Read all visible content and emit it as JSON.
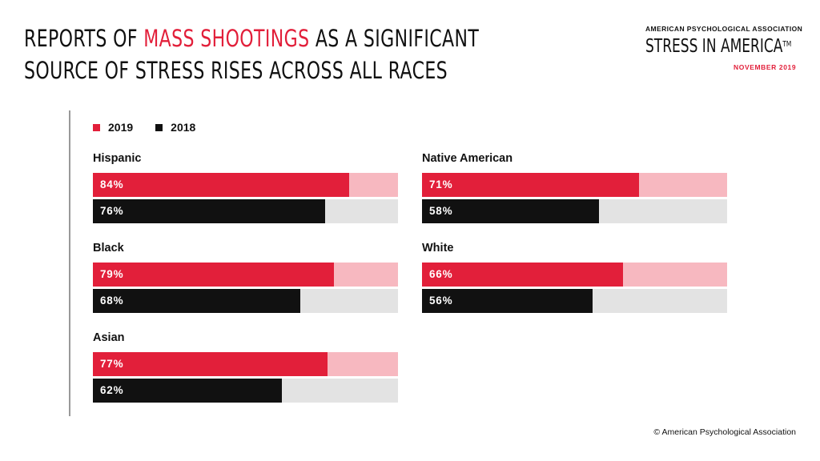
{
  "header": {
    "title_part1": "REPORTS OF ",
    "title_highlight": "MASS SHOOTINGS",
    "title_part2": " AS A SIGNIFICANT",
    "title_line2": "SOURCE OF STRESS RISES ACROSS ALL RACES"
  },
  "brand": {
    "org": "AMERICAN PSYCHOLOGICAL ASSOCIATION",
    "name": "STRESS IN AMERICA",
    "tm": "TM",
    "date": "NOVEMBER 2019"
  },
  "footer": {
    "copyright": "© American Psychological Association"
  },
  "colors": {
    "red": "#e21f3a",
    "red_track": "#f7b8c0",
    "black": "#111111",
    "gray_track": "#e3e3e3"
  },
  "chart_data": {
    "type": "bar",
    "orientation": "horizontal",
    "unit": "%",
    "xlim": [
      0,
      100
    ],
    "legend": [
      "2019",
      "2018"
    ],
    "legend_placement": "top-left",
    "groups": [
      {
        "name": "Hispanic",
        "values": [
          84,
          76
        ],
        "labels": [
          "84%",
          "76%"
        ]
      },
      {
        "name": "Black",
        "values": [
          79,
          68
        ],
        "labels": [
          "79%",
          "68%"
        ]
      },
      {
        "name": "Asian",
        "values": [
          77,
          62
        ],
        "labels": [
          "77%",
          "62%"
        ]
      },
      {
        "name": "Native American",
        "values": [
          71,
          58
        ],
        "labels": [
          "71%",
          "58%"
        ]
      },
      {
        "name": "White",
        "values": [
          66,
          56
        ],
        "labels": [
          "66%",
          "56%"
        ]
      }
    ]
  }
}
